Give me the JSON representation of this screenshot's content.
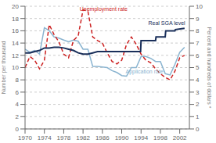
{
  "chart_data": {
    "type": "line",
    "ylabel": "Number per thousand",
    "y2label": "Percent and hundreds of dollars *",
    "xlim": [
      1970,
      2004
    ],
    "xticks": [
      1970,
      1974,
      1978,
      1982,
      1986,
      1990,
      1994,
      1998,
      2002
    ],
    "ylim": [
      0,
      20
    ],
    "yticks": [
      0,
      2,
      4,
      6,
      8,
      10,
      12,
      14,
      16,
      18,
      20
    ],
    "y2lim": [
      0,
      10
    ],
    "y2ticks": [
      0,
      1,
      2,
      3,
      4,
      5,
      6,
      7,
      8,
      9,
      10
    ],
    "grid": true,
    "series": [
      {
        "color": "#8ab4d0",
        "line_style": "solid",
        "x": [
          1970,
          1971,
          1972,
          1973,
          1974,
          1975,
          1976,
          1977,
          1978,
          1979,
          1980,
          1981,
          1982,
          1983,
          1984,
          1985,
          1986,
          1987,
          1988,
          1989,
          1990,
          1991,
          1992,
          1993,
          1994,
          1995,
          1996,
          1997,
          1998,
          1999,
          2000,
          2001,
          2002,
          2003
        ],
        "values": [
          13.0,
          12.5,
          12.8,
          12.2,
          16.5,
          16.0,
          15.0,
          14.8,
          14.5,
          14.2,
          14.5,
          14.3,
          13.0,
          13.0,
          10.2,
          10.2,
          10.1,
          10.0,
          9.5,
          9.2,
          8.7,
          8.6,
          10.0,
          10.0,
          11.8,
          11.8,
          11.5,
          11.0,
          11.0,
          9.0,
          8.8,
          10.5,
          12.5,
          13.3
        ]
      },
      {
        "color": "#cc2222",
        "line_style": "dashed",
        "axis": "y2",
        "x": [
          1970,
          1971,
          1972,
          1973,
          1974,
          1975,
          1976,
          1977,
          1978,
          1979,
          1980,
          1981,
          1982,
          1983,
          1984,
          1985,
          1986,
          1987,
          1988,
          1989,
          1990,
          1991,
          1992,
          1993,
          1994,
          1995,
          1996,
          1997,
          1998,
          1999,
          2000,
          2001,
          2002,
          2003
        ],
        "values": [
          5.0,
          5.9,
          5.6,
          4.9,
          5.6,
          8.5,
          7.7,
          7.1,
          6.1,
          5.8,
          7.2,
          7.6,
          9.7,
          9.6,
          7.5,
          7.2,
          7.0,
          6.2,
          5.5,
          5.3,
          5.6,
          6.9,
          7.5,
          6.9,
          6.1,
          5.6,
          5.4,
          4.9,
          4.5,
          4.2,
          4.0,
          4.7,
          5.8,
          6.0
        ]
      },
      {
        "color": "#1a2f5a",
        "line_style": "solid",
        "axis": "y2",
        "x": [
          1970,
          1971,
          1972,
          1973,
          1974,
          1975,
          1976,
          1977,
          1978,
          1979,
          1980,
          1981,
          1982,
          1983,
          1984,
          1985,
          1986,
          1987,
          1988,
          1989,
          1990,
          1991,
          1992,
          1993,
          1993.9,
          1994,
          1994.1,
          1997,
          1997.1,
          1999,
          1999.1,
          2001,
          2001.1,
          2003
        ],
        "values": [
          6.2,
          6.2,
          6.3,
          6.4,
          6.6,
          6.6,
          6.65,
          6.65,
          6.6,
          6.5,
          6.4,
          6.2,
          6.1,
          6.1,
          6.2,
          6.3,
          6.3,
          6.3,
          6.3,
          6.3,
          6.3,
          6.3,
          6.3,
          6.3,
          6.3,
          7.2,
          7.2,
          7.2,
          7.5,
          7.5,
          8.0,
          8.0,
          8.1,
          8.2
        ]
      }
    ],
    "annotations": [
      {
        "text": "Unemployment rate",
        "x": 1981.3,
        "y": 9.6,
        "color": "#cc2222",
        "axis": "y2"
      },
      {
        "text": "Real SGA level",
        "x": 1995.5,
        "y": 8.5,
        "color": "#1a2f5a",
        "axis": "y2"
      },
      {
        "text": "Application rate",
        "x": 1990.8,
        "y": 4.5,
        "color": "#8ab4d0",
        "axis": "y2"
      }
    ]
  }
}
